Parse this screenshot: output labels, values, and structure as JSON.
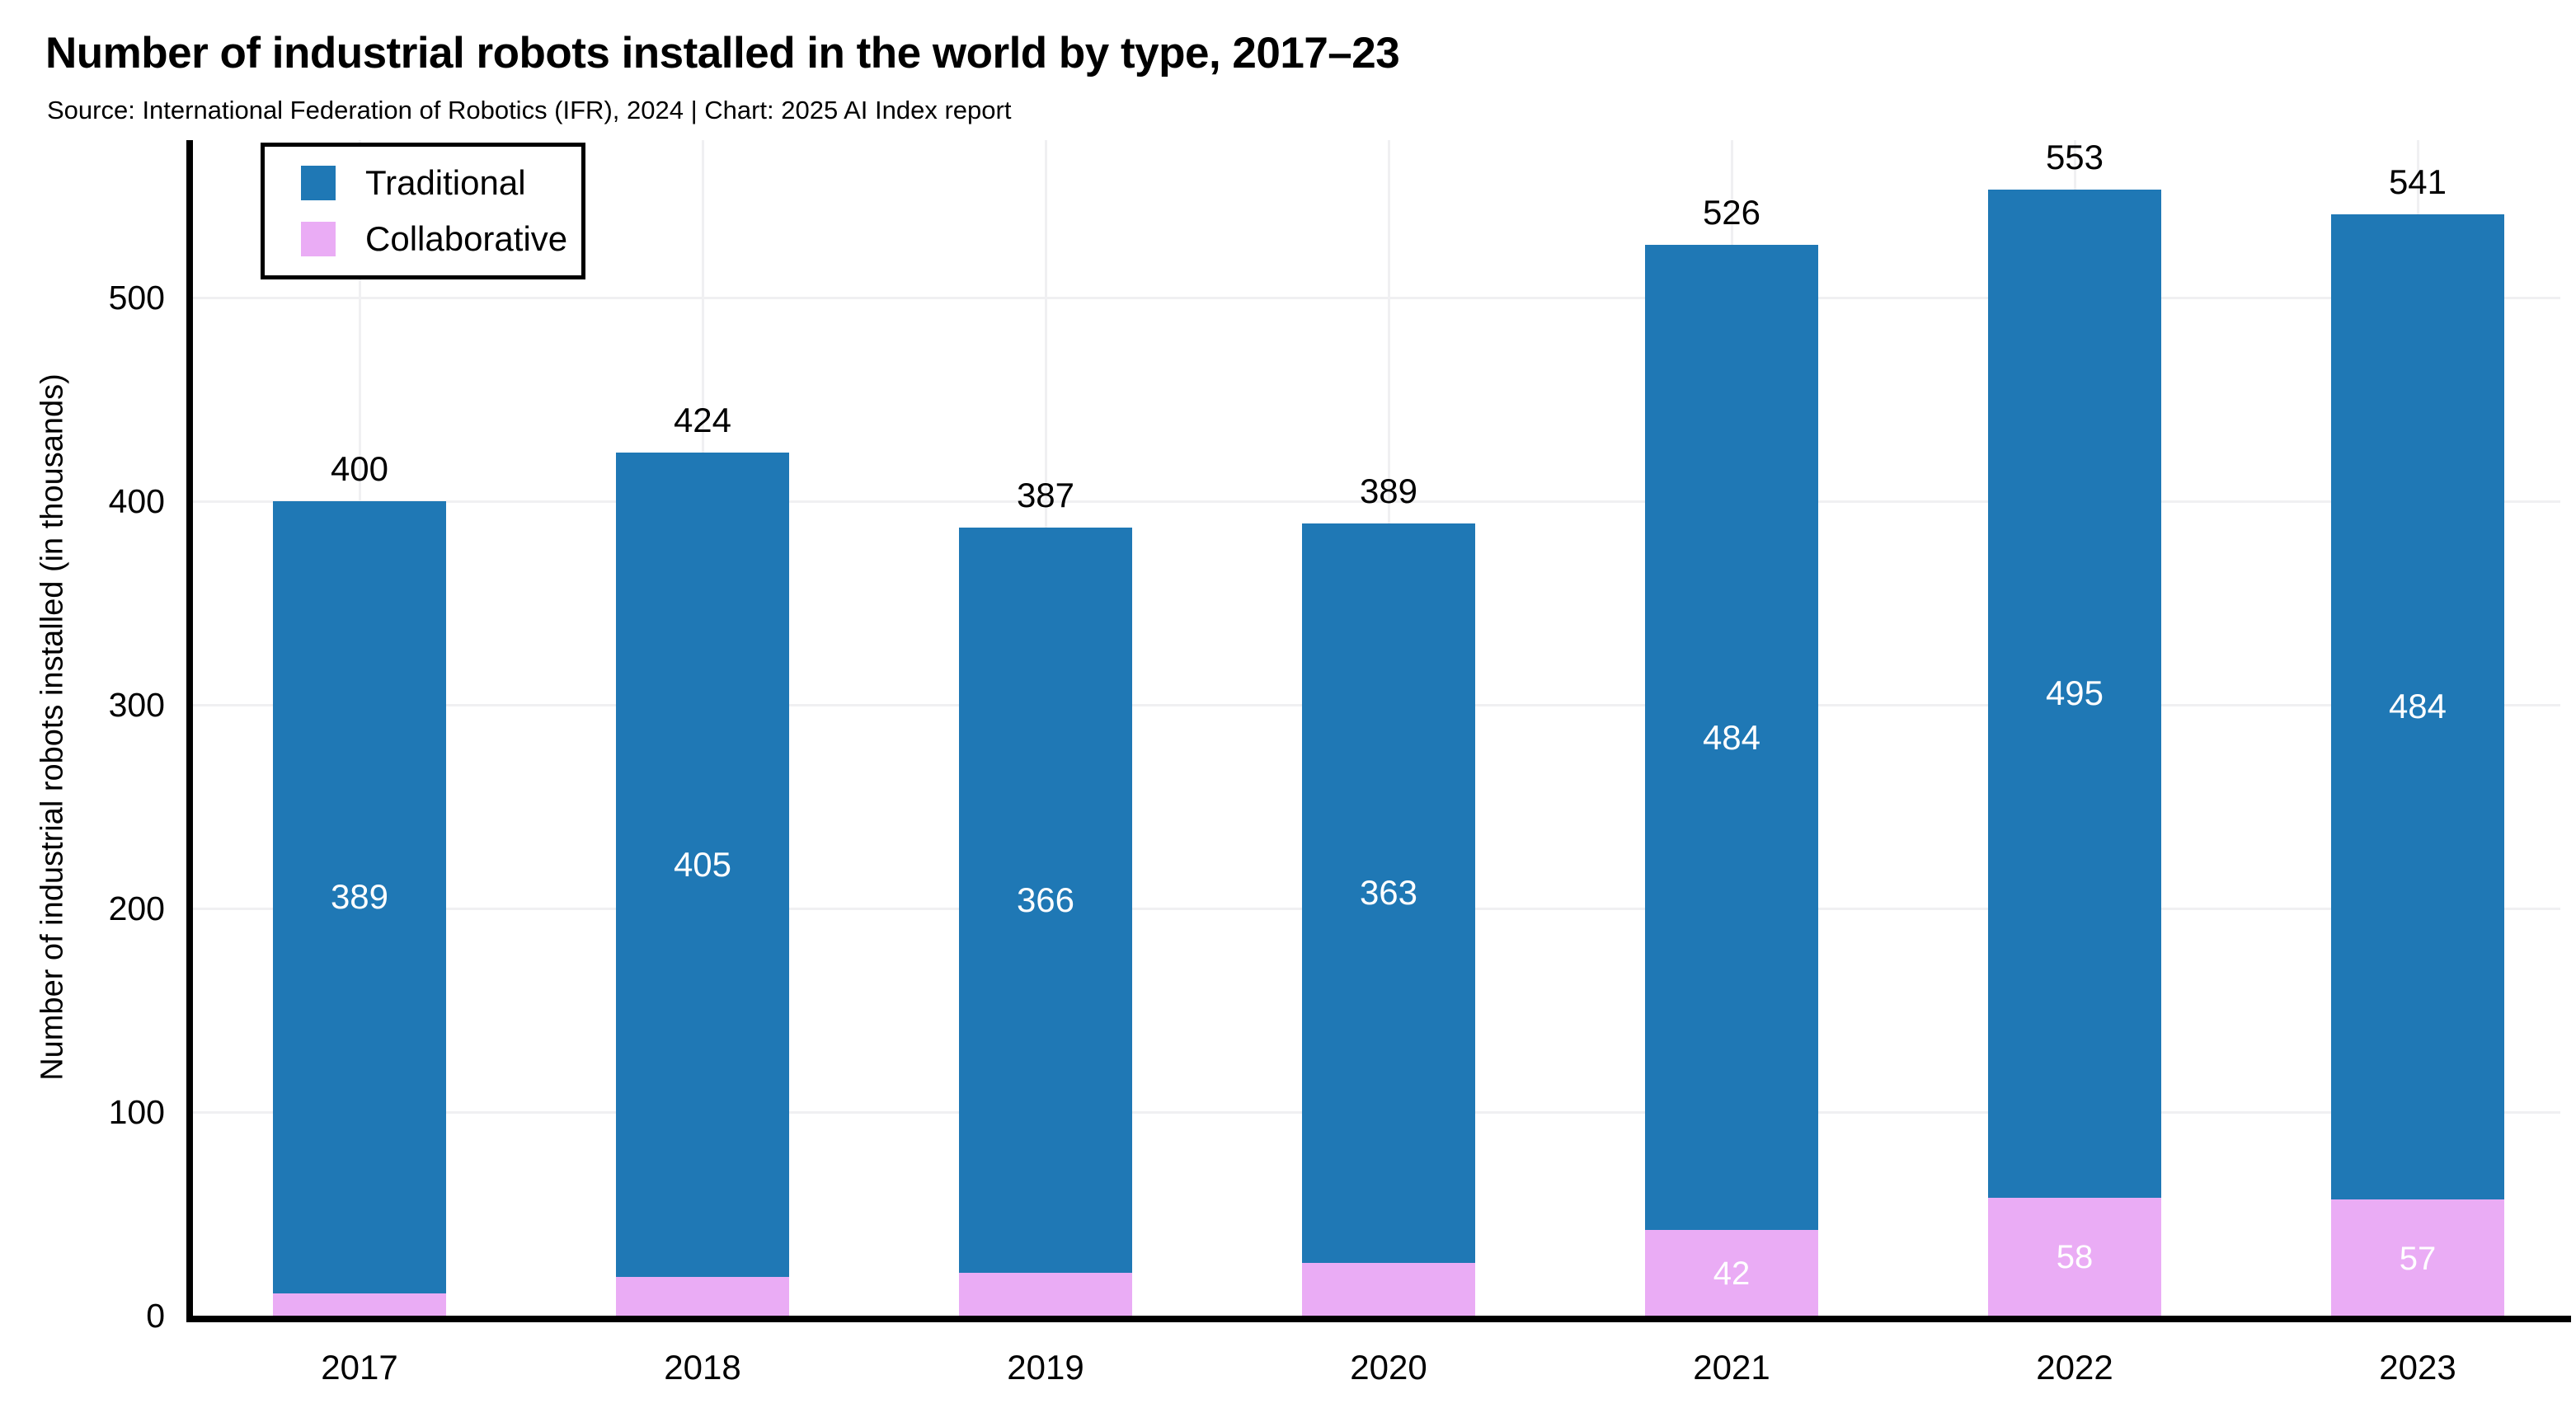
{
  "title": "Number of industrial robots installed in the world by type, 2017–23",
  "subtitle": "Source: International Federation of Robotics (IFR), 2024 | Chart: 2025 AI Index report",
  "colors": {
    "traditional_blue": "#1f78b5",
    "collaborative_pink": "#eaacf5",
    "grid": "#f0f0f2",
    "axis": "#000000",
    "background": "#ffffff",
    "inside_label_text": "#ffffff",
    "outside_label_text": "#000000"
  },
  "legend": {
    "position": "top-left",
    "items": [
      {
        "label": "Traditional",
        "color_key": "traditional_blue"
      },
      {
        "label": "Collaborative",
        "color_key": "collaborative_pink"
      }
    ]
  },
  "chart_data": {
    "type": "bar",
    "stacked": true,
    "title": "Number of industrial robots installed in the world by type, 2017–23",
    "xlabel": "",
    "ylabel": "Number of industrial robots installed (in thousands)",
    "categories": [
      "2017",
      "2018",
      "2019",
      "2020",
      "2021",
      "2022",
      "2023"
    ],
    "series": [
      {
        "name": "Traditional",
        "color_key": "traditional_blue",
        "values": [
          389,
          405,
          366,
          363,
          484,
          495,
          484
        ],
        "labels": [
          "389",
          "405",
          "366",
          "363",
          "484",
          "495",
          "484"
        ]
      },
      {
        "name": "Collaborative",
        "color_key": "collaborative_pink",
        "values": [
          11,
          19,
          21,
          26,
          42,
          58,
          57
        ],
        "labels": [
          null,
          null,
          null,
          null,
          "42",
          "58",
          "57"
        ]
      }
    ],
    "totals": [
      400,
      424,
      387,
      389,
      526,
      553,
      541
    ],
    "total_labels": [
      "400",
      "424",
      "387",
      "389",
      "526",
      "553",
      "541"
    ],
    "yticks": [
      0,
      100,
      200,
      300,
      400,
      500
    ],
    "ylim": [
      0,
      578
    ],
    "grid": true,
    "legend_position": "top-left"
  }
}
